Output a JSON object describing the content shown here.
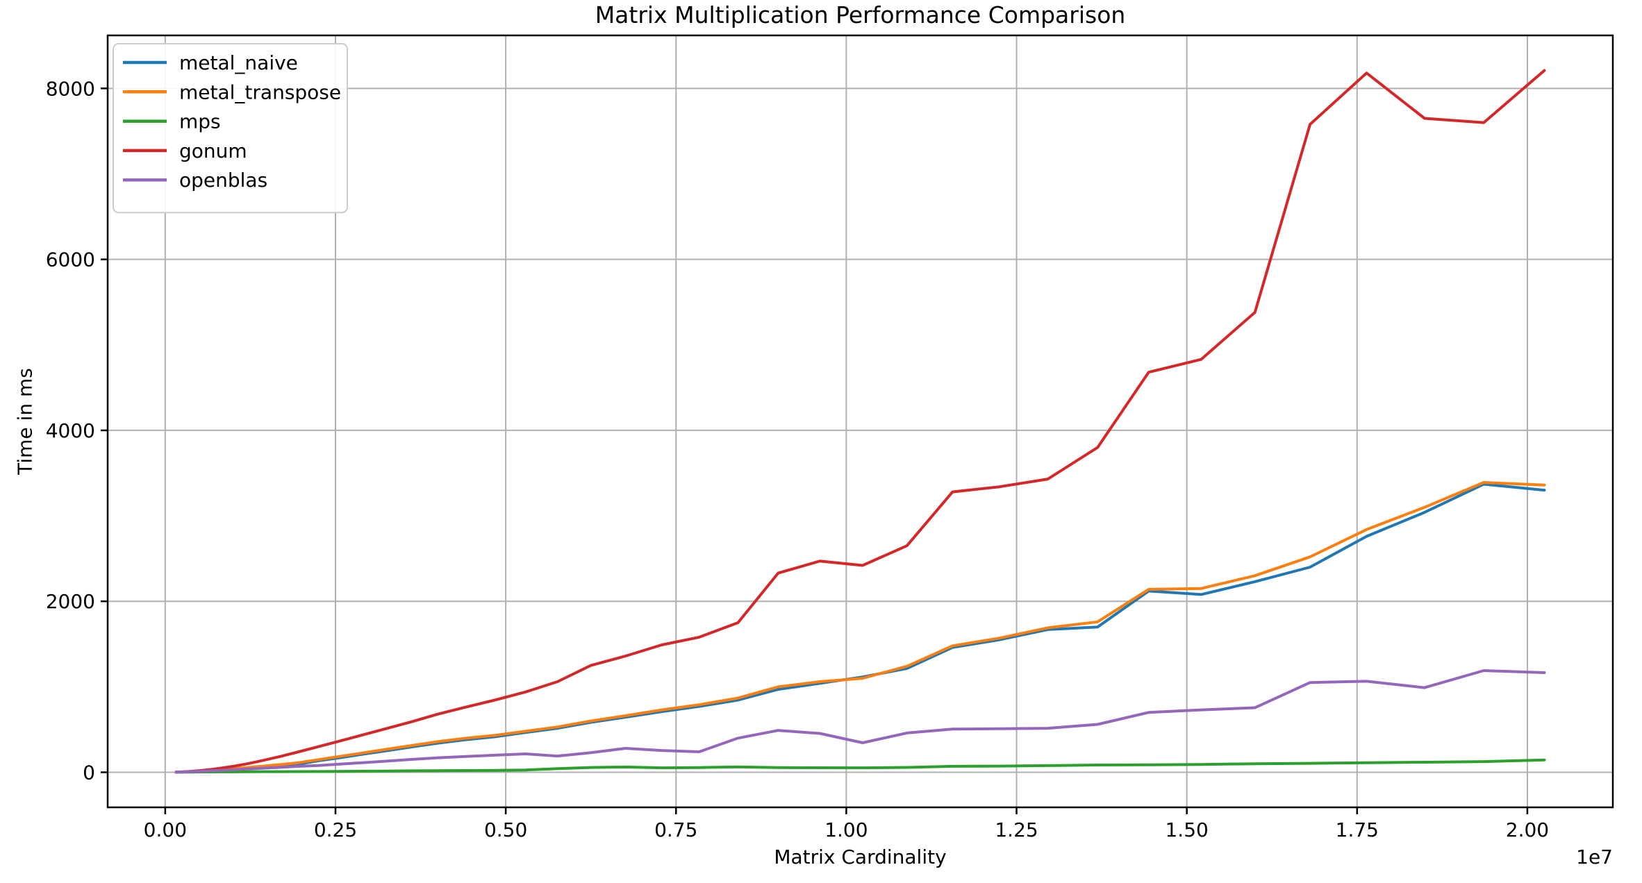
{
  "figure": {
    "title": "Matrix Multiplication Performance Comparison"
  },
  "chart_data": {
    "type": "line",
    "title": "Matrix Multiplication Performance Comparison",
    "xlabel": "Matrix Cardinality",
    "ylabel": "Time in ms",
    "x_offset_label": "1e7",
    "xlim": [
      -845000,
      21255000
    ],
    "ylim": [
      -410,
      8620
    ],
    "grid": true,
    "grid_color": "#b0b0b0",
    "spine_color": "#000000",
    "background": "#ffffff",
    "legend_position": "upper-left",
    "xticks": [
      {
        "value": 0,
        "label": "0.00"
      },
      {
        "value": 2500000,
        "label": "0.25"
      },
      {
        "value": 5000000,
        "label": "0.50"
      },
      {
        "value": 7500000,
        "label": "0.75"
      },
      {
        "value": 10000000,
        "label": "1.00"
      },
      {
        "value": 12500000,
        "label": "1.25"
      },
      {
        "value": 15000000,
        "label": "1.50"
      },
      {
        "value": 17500000,
        "label": "1.75"
      },
      {
        "value": 20000000,
        "label": "2.00"
      }
    ],
    "yticks": [
      {
        "value": 0,
        "label": "0"
      },
      {
        "value": 2000,
        "label": "2000"
      },
      {
        "value": 4000,
        "label": "4000"
      },
      {
        "value": 6000,
        "label": "6000"
      },
      {
        "value": 8000,
        "label": "8000"
      }
    ],
    "x": [
      160000,
      250000,
      360000,
      490000,
      640000,
      810000,
      1000000,
      1210000,
      1440000,
      1690000,
      1960000,
      2250000,
      2560000,
      2890000,
      3240000,
      3610000,
      4000000,
      4410000,
      4840000,
      5290000,
      5760000,
      6250000,
      6760000,
      7290000,
      7840000,
      8410000,
      9000000,
      9610000,
      10240000,
      10890000,
      11560000,
      12250000,
      12960000,
      13690000,
      14440000,
      15210000,
      16000000,
      16810000,
      17640000,
      18490000,
      19360000,
      20250000
    ],
    "series": [
      {
        "name": "metal_naive",
        "color": "#1f77b4",
        "values": [
          2,
          4,
          7,
          11,
          17,
          25,
          35,
          47,
          60,
          76,
          95,
          135,
          170,
          210,
          250,
          295,
          340,
          380,
          415,
          465,
          515,
          585,
          645,
          710,
          770,
          845,
          970,
          1040,
          1115,
          1215,
          1460,
          1550,
          1670,
          1700,
          2120,
          2080,
          2230,
          2400,
          2760,
          3040,
          3370,
          3300
        ]
      },
      {
        "name": "metal_transpose",
        "color": "#ff7f0e",
        "values": [
          3,
          5,
          9,
          14,
          21,
          30,
          42,
          56,
          72,
          90,
          112,
          148,
          185,
          225,
          268,
          312,
          358,
          398,
          432,
          480,
          530,
          600,
          662,
          730,
          790,
          868,
          1000,
          1060,
          1100,
          1240,
          1480,
          1570,
          1690,
          1760,
          2140,
          2150,
          2300,
          2520,
          2840,
          3100,
          3390,
          3360
        ]
      },
      {
        "name": "mps",
        "color": "#2ca02c",
        "values": [
          1,
          1,
          2,
          3,
          4,
          5,
          5,
          6,
          7,
          7,
          8,
          9,
          11,
          13,
          15,
          17,
          19,
          20,
          22,
          27,
          42,
          56,
          62,
          52,
          55,
          63,
          55,
          53,
          52,
          57,
          70,
          72,
          78,
          85,
          88,
          92,
          100,
          105,
          112,
          118,
          125,
          145
        ]
      },
      {
        "name": "gonum",
        "color": "#d62728",
        "values": [
          2,
          5,
          10,
          18,
          30,
          48,
          70,
          100,
          140,
          185,
          240,
          300,
          365,
          435,
          510,
          590,
          680,
          762,
          845,
          940,
          1060,
          1250,
          1360,
          1490,
          1580,
          1750,
          2330,
          2470,
          2420,
          2650,
          3280,
          3340,
          3430,
          3800,
          4680,
          4830,
          5380,
          7580,
          8180,
          7650,
          7600,
          8210
        ]
      },
      {
        "name": "openblas",
        "color": "#9467bd",
        "values": [
          2,
          4,
          7,
          11,
          16,
          22,
          30,
          38,
          48,
          58,
          70,
          80,
          95,
          112,
          130,
          150,
          170,
          185,
          200,
          215,
          190,
          230,
          280,
          255,
          240,
          400,
          490,
          455,
          345,
          460,
          505,
          510,
          515,
          560,
          700,
          730,
          755,
          1050,
          1065,
          990,
          1190,
          1165
        ]
      }
    ]
  }
}
